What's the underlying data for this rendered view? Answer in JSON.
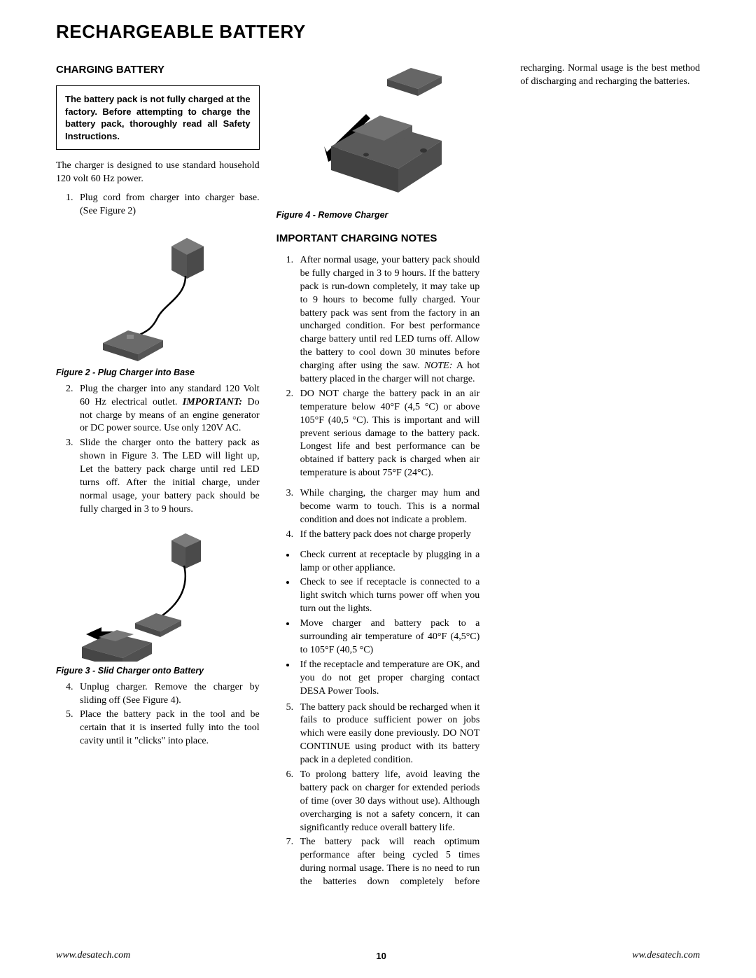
{
  "page_title": "RECHARGEABLE BATTERY",
  "section1_heading": "CHARGING BATTERY",
  "warning_text": "The battery pack is not fully charged at the factory. Before attempting to charge the battery pack, thoroughly read all Safety Instructions.",
  "intro_para": "The charger is designed to use standard household 120 volt 60 Hz power.",
  "steps_a": [
    "Plug cord from charger into charger base. (See Figure 2)"
  ],
  "fig2_caption": "Figure 2 - Plug Charger into Base",
  "steps_b": [
    {
      "num": "2.",
      "html": "Plug the charger into any standard 120 Volt 60 Hz electrical outlet. <span class=\"important-inline\">IMPORTANT:</span> Do not charge by means of an engine generator or DC power source. Use only 120V AC."
    },
    {
      "num": "3.",
      "html": "Slide the charger onto the battery pack as shown in Figure 3. The LED will light up, Let the battery pack charge until red LED turns off.  After the initial charge, under normal usage, your battery pack should be fully charged in 3 to 9 hours."
    }
  ],
  "fig3_caption": "Figure 3 - Slid Charger onto Battery",
  "steps_c": [
    {
      "num": "4.",
      "text": "Unplug charger. Remove the charger by sliding off (See Figure 4)."
    },
    {
      "num": "5.",
      "text": "Place the battery pack in the tool and be certain that it is inserted fully into the tool cavity until it \"clicks\" into place."
    }
  ],
  "fig4_caption": "Figure 4 - Remove Charger",
  "section2_heading": "IMPORTANT CHARGING NOTES",
  "notes_a": [
    {
      "num": "1.",
      "html": "After normal usage, your battery pack should be fully charged in 3 to 9 hours. If the battery pack is run-down completely, it may take up to 9 hours to become fully charged. Your battery pack was sent from the factory in an uncharged condition.  For best performance charge battery until red LED turns off. Allow the battery to cool down 30 minutes before charging after using the saw.  <span class=\"note-inline\">NOTE:</span> A hot battery placed in the charger will not charge."
    },
    {
      "num": "2.",
      "html": "DO NOT charge the battery pack in an air temperature below 40°F (4,5 °C) or above 105°F (40,5 °C). This is important and will prevent serious damage to the battery pack. Longest life and best performance can be obtained if battery pack is charged when air temperature is about 75°F (24°C)."
    }
  ],
  "notes_b": [
    {
      "num": "3.",
      "text": "While charging, the charger may hum and become warm to touch. This is a normal condition and does not indicate a problem."
    },
    {
      "num": "4.",
      "text": "If the battery pack does not charge properly"
    }
  ],
  "check_bullets": [
    "Check current at receptacle by plugging in a lamp or other appliance.",
    "Check to see if receptacle is connected to a light switch which turns power off when you turn out the lights.",
    "Move charger and battery pack to a surrounding air temperature of 40°F (4,5°C) to 105°F (40,5 °C)",
    "If the receptacle and temperature are OK, and you do not get proper charging contact DESA Power Tools."
  ],
  "notes_c": [
    {
      "num": "5.",
      "text": "The battery pack should be recharged when it fails to produce sufficient power on jobs which were easily done previously. DO NOT CONTINUE using product with its battery pack in a depleted condition."
    },
    {
      "num": "6.",
      "text": "To prolong battery life, avoid leaving the battery pack on charger for extended periods of time (over 30 days without use). Although overcharging is not a safety concern, it can significantly reduce overall battery life."
    },
    {
      "num": "7.",
      "text": "The battery pack will reach optimum performance after being cycled 5 times during normal usage. There is no need to run the batteries down completely before recharging. Normal usage is the best method of discharging and recharging the batteries."
    }
  ],
  "footer_left": "www.desatech.com",
  "footer_page": "10",
  "footer_right": "ww.desatech.com",
  "colors": {
    "body_dark": "#444444",
    "body_light": "#6a6a6a",
    "arrow": "#000000",
    "line": "#000000"
  }
}
